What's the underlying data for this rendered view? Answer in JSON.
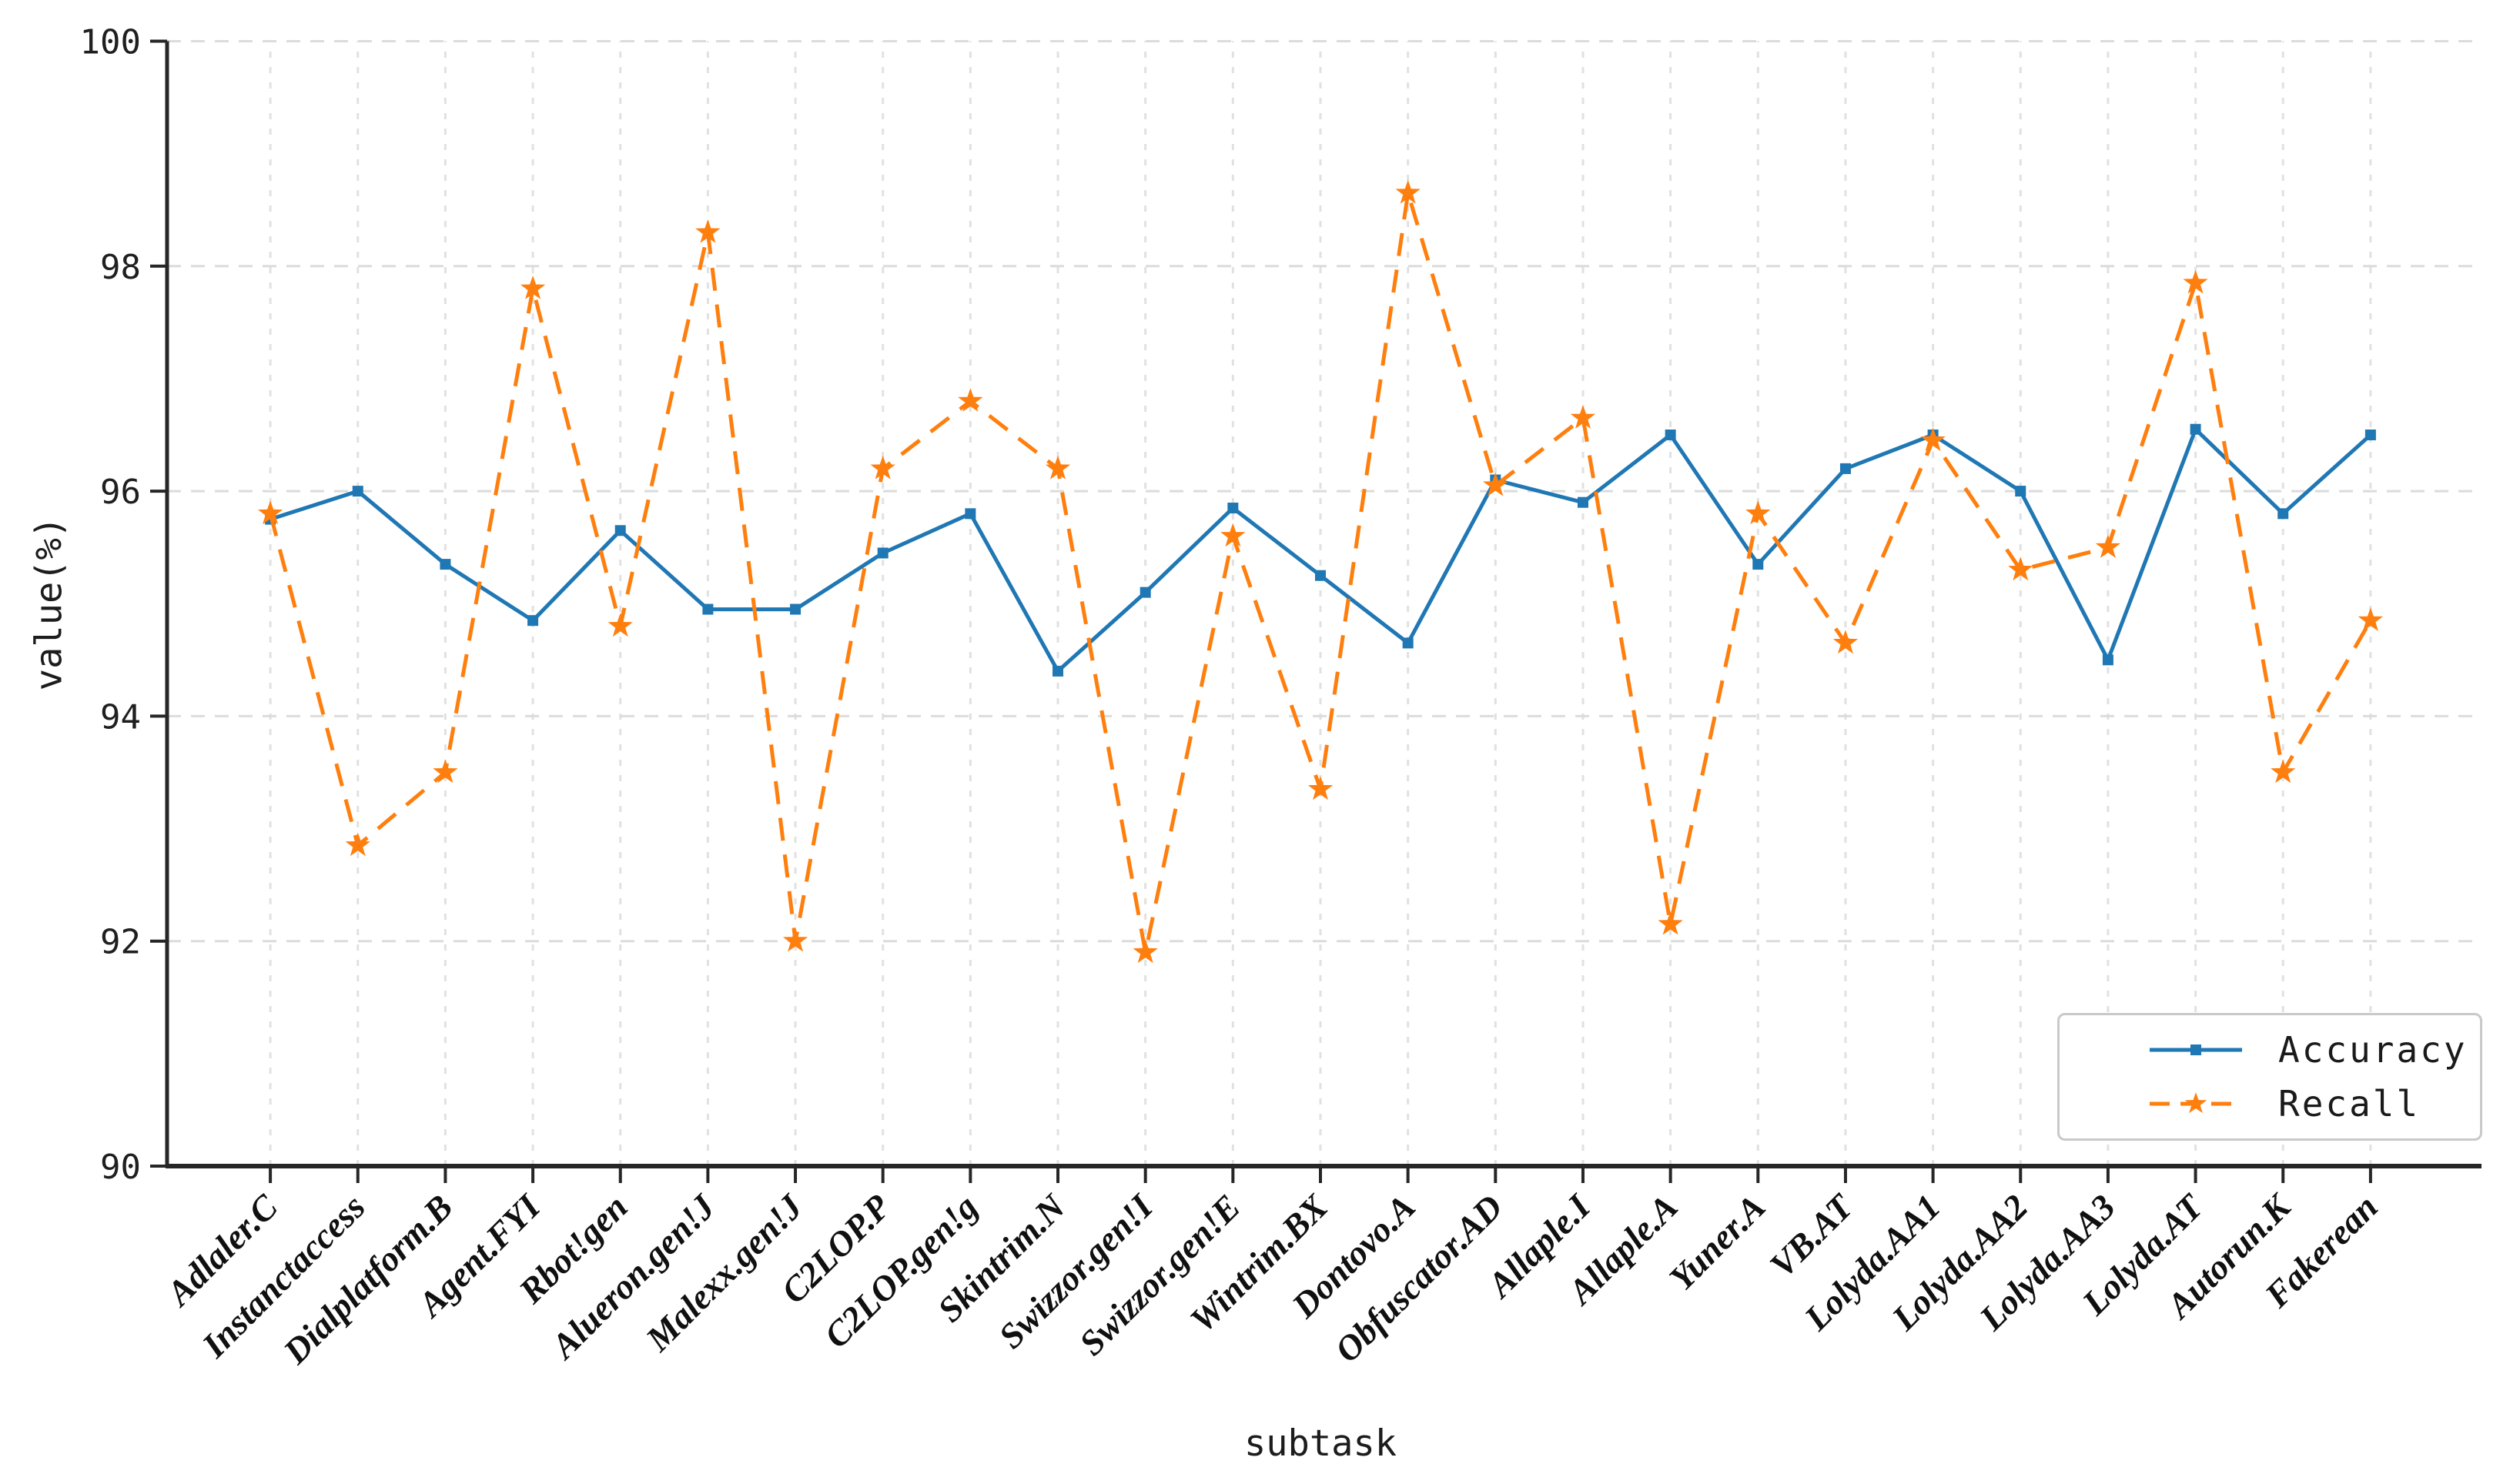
{
  "chart_data": {
    "type": "line",
    "title": "",
    "xlabel": "subtask",
    "ylabel": "value(%)",
    "ylim": [
      90,
      100
    ],
    "yticks": [
      90,
      92,
      94,
      96,
      98,
      100
    ],
    "grid": true,
    "legend_position": "lower right",
    "categories": [
      "Adlaler.C",
      "Instanctaccess",
      "Dialplatform.B",
      "Agent.FYI",
      "Rbot!gen",
      "Alueron.gen!J",
      "Malexx.gen!J",
      "C2LOP.P",
      "C2LOP.gen!g",
      "Skintrim.N",
      "Swizzor.gen!I",
      "Swizzor.gen!E",
      "Wintrim.BX",
      "Dontovo.A",
      "Obfuscator.AD",
      "Allaple.I",
      "Allaple.A",
      "Yuner.A",
      "VB.AT",
      "Lolyda.AA1",
      "Lolyda.AA2",
      "Lolyda.AA3",
      "Lolyda.AT",
      "Autorun.K",
      "Fakerean"
    ],
    "series": [
      {
        "name": "Accuracy",
        "color": "#1f77b4",
        "style": "solid",
        "marker": "square",
        "values": [
          95.75,
          96.0,
          95.35,
          94.85,
          95.65,
          94.95,
          94.95,
          95.45,
          95.8,
          94.4,
          95.1,
          95.85,
          95.25,
          94.65,
          96.1,
          95.9,
          96.5,
          95.35,
          96.2,
          96.5,
          96.0,
          94.5,
          96.55,
          95.8,
          96.5
        ]
      },
      {
        "name": "Recall",
        "color": "#ff7f0e",
        "style": "dashed",
        "marker": "star",
        "values": [
          95.8,
          92.85,
          93.5,
          97.8,
          94.8,
          98.3,
          92.0,
          96.2,
          96.8,
          96.2,
          91.9,
          95.6,
          93.35,
          98.65,
          96.05,
          96.65,
          92.15,
          95.8,
          94.65,
          96.45,
          95.3,
          95.5,
          97.85,
          93.5,
          94.85
        ]
      }
    ],
    "grid_color": "#dcdcdc",
    "axis_color": "#262626"
  }
}
